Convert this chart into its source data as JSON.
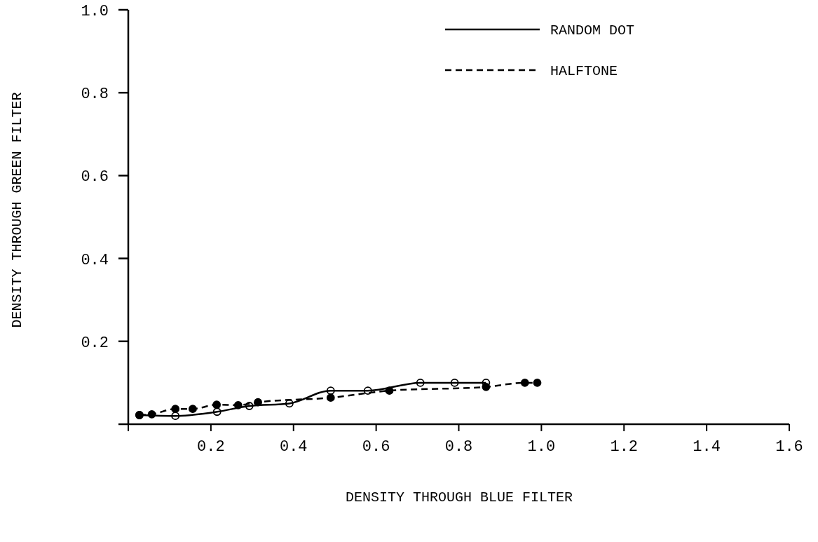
{
  "chart_data": {
    "type": "line",
    "xlabel": "DENSITY THROUGH BLUE FILTER",
    "ylabel": "DENSITY THROUGH GREEN FILTER",
    "xlim": [
      0,
      1.6
    ],
    "ylim": [
      0,
      1.0
    ],
    "xticks": [
      {
        "value": 0,
        "label": null
      },
      0.2,
      0.4,
      0.6,
      0.8,
      {
        "value": 1,
        "label": "1.0"
      },
      1.2,
      1.4,
      1.6
    ],
    "yticks": [
      {
        "value": 0,
        "label": null
      },
      0.2,
      0.4,
      0.6,
      0.8,
      {
        "value": 1,
        "label": "1.0"
      }
    ],
    "grid": false,
    "legend": "top right",
    "marker": "circle",
    "series": [
      {
        "name": "RANDOM DOT",
        "color": "#000000",
        "line_style": "solid",
        "x": [
          0.027,
          0.114,
          0.215,
          0.293,
          0.39,
          0.49,
          0.58,
          0.707,
          0.79,
          0.866
        ],
        "values": [
          0.022,
          0.02,
          0.03,
          0.044,
          0.05,
          0.081,
          0.081,
          0.1,
          0.1,
          0.1
        ]
      },
      {
        "name": "HALFTONE",
        "color": "#000000",
        "line_style": "dashed",
        "x": [
          0.027,
          0.057,
          0.114,
          0.156,
          0.214,
          0.266,
          0.314,
          0.49,
          0.632,
          0.866,
          0.96,
          0.99
        ],
        "values": [
          0.022,
          0.024,
          0.037,
          0.037,
          0.047,
          0.046,
          0.053,
          0.064,
          0.081,
          0.09,
          0.1,
          0.1
        ]
      }
    ]
  }
}
